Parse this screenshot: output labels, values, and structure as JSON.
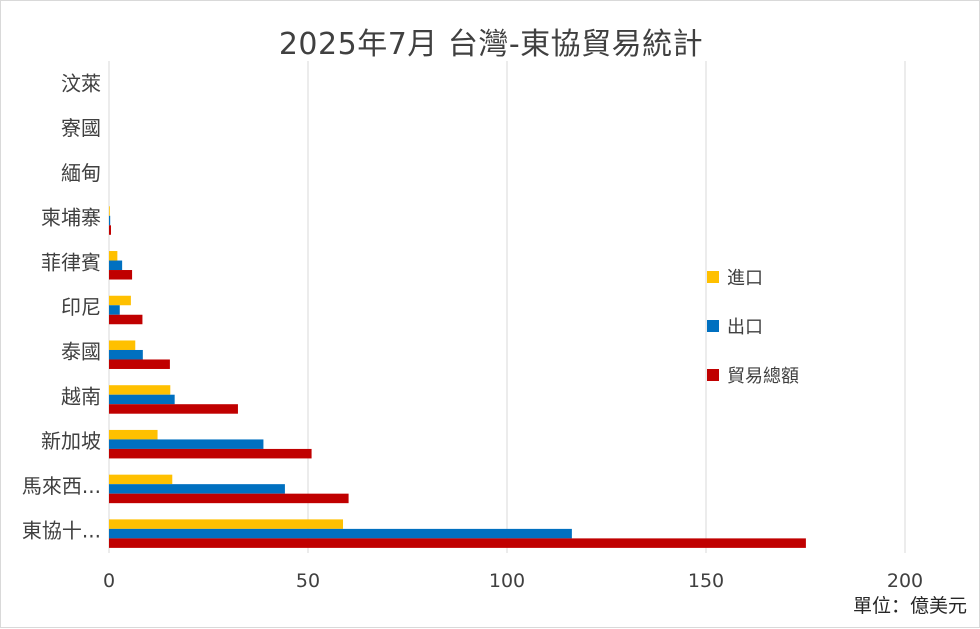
{
  "chart_data": {
    "type": "bar",
    "orientation": "horizontal",
    "title": "2025年7月 台灣-東協貿易統計",
    "unit_note": "單位：億美元",
    "categories": [
      "東協十...",
      "馬來西...",
      "新加坡",
      "越南",
      "泰國",
      "印尼",
      "菲律賓",
      "柬埔寨",
      "緬甸",
      "寮國",
      "汶萊"
    ],
    "series": [
      {
        "name": "進口",
        "color": "#ffc000",
        "values": [
          58.8,
          15.9,
          12.2,
          15.4,
          6.6,
          5.5,
          2.1,
          0.2,
          0,
          0,
          0
        ]
      },
      {
        "name": "出口",
        "color": "#0070c0",
        "values": [
          116.3,
          44.2,
          38.8,
          16.5,
          8.5,
          2.7,
          3.3,
          0.3,
          0,
          0,
          0
        ]
      },
      {
        "name": "貿易總額",
        "color": "#c00000",
        "values": [
          175.1,
          60.2,
          50.9,
          32.4,
          15.3,
          8.4,
          5.8,
          0.5,
          0,
          0,
          0
        ]
      }
    ],
    "xlim": [
      0,
      200
    ],
    "xticks": [
      "0",
      "50",
      "100",
      "150",
      "200"
    ],
    "grid": true,
    "legend_position": "right"
  }
}
